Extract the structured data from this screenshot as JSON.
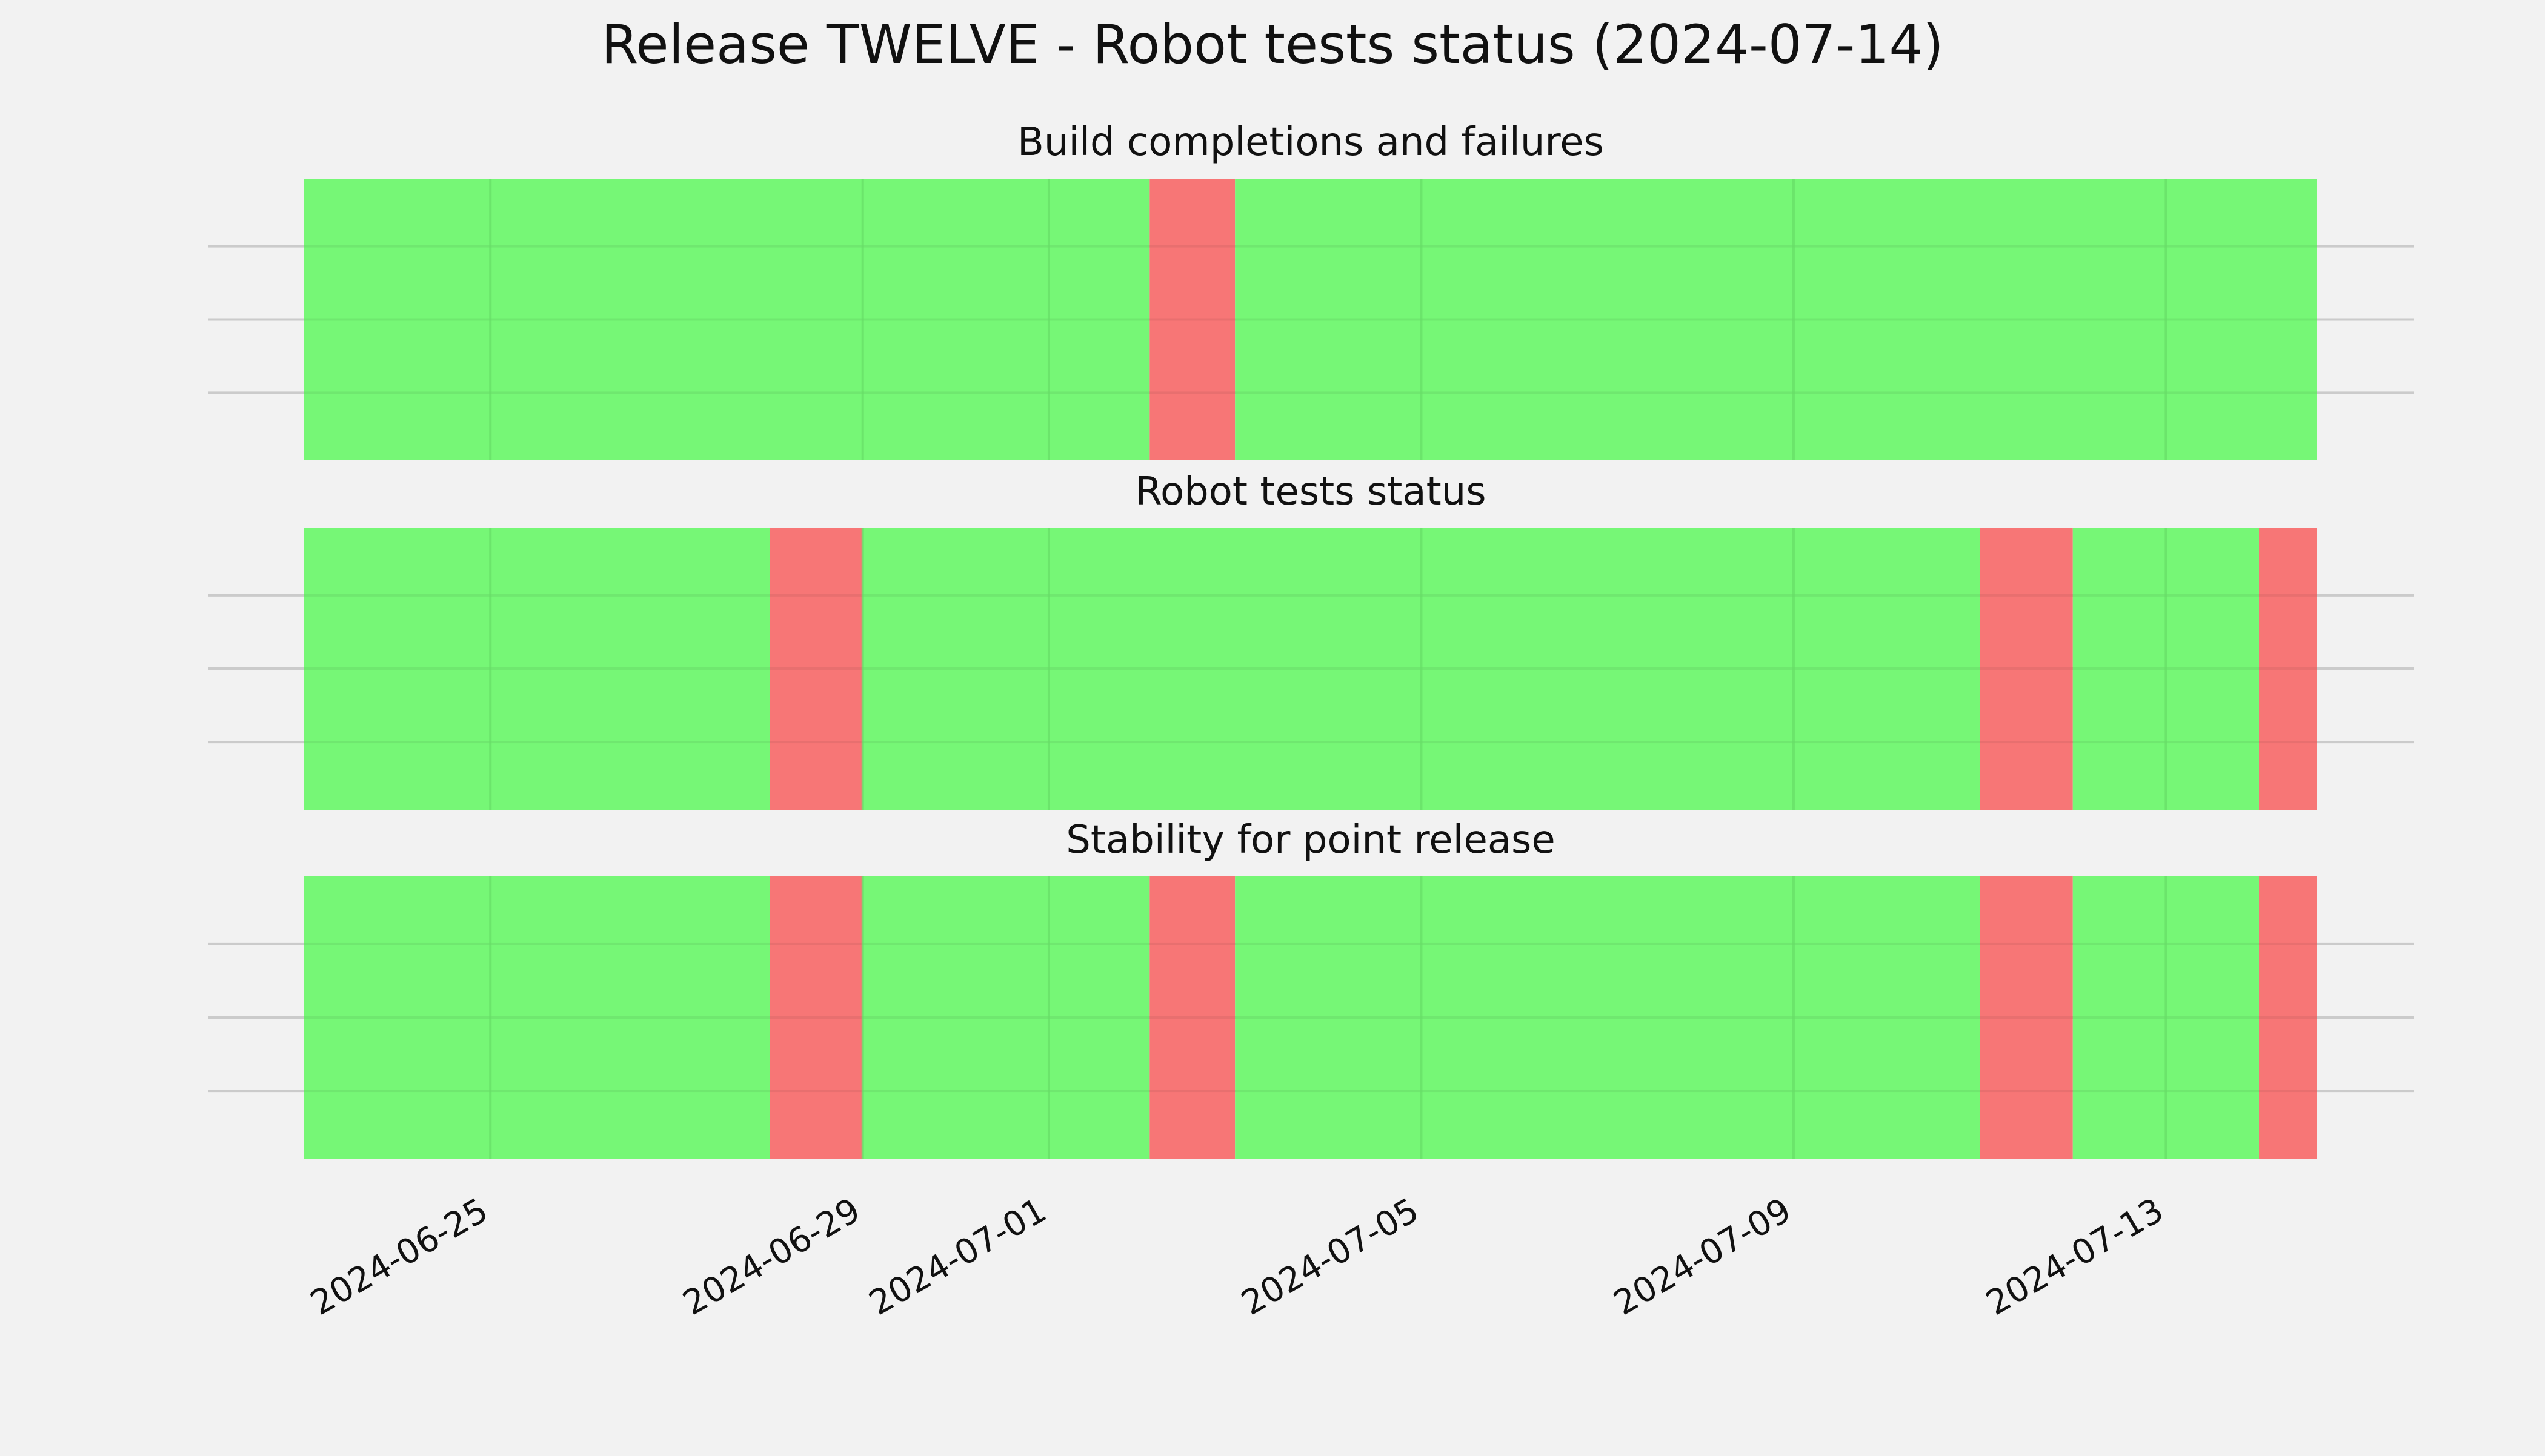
{
  "chart_data": {
    "type": "status-timeline",
    "title": "Release TWELVE - Robot tests status (2024-07-14)",
    "x_range": [
      "2024-06-23",
      "2024-07-14T15:00"
    ],
    "x_ticks": [
      "2024-06-25",
      "2024-06-29",
      "2024-07-01",
      "2024-07-05",
      "2024-07-09",
      "2024-07-13"
    ],
    "colors": {
      "pass": "#76f776",
      "fail": "#f77676",
      "background": "#f2f2f2",
      "grid": "#cbcbcb",
      "vgrid": "#66dd66"
    },
    "panels": [
      {
        "title": "Build completions and failures",
        "segments": [
          {
            "start": "2024-06-23",
            "end": "2024-07-02T02:00",
            "status": "pass"
          },
          {
            "start": "2024-07-02T02:00",
            "end": "2024-07-03",
            "status": "fail"
          },
          {
            "start": "2024-07-03",
            "end": "2024-07-14T15:00",
            "status": "pass"
          }
        ]
      },
      {
        "title": "Robot tests status",
        "segments": [
          {
            "start": "2024-06-23",
            "end": "2024-06-28",
            "status": "pass"
          },
          {
            "start": "2024-06-28",
            "end": "2024-06-29",
            "status": "fail"
          },
          {
            "start": "2024-06-29",
            "end": "2024-07-11",
            "status": "pass"
          },
          {
            "start": "2024-07-11",
            "end": "2024-07-12",
            "status": "fail"
          },
          {
            "start": "2024-07-12",
            "end": "2024-07-14",
            "status": "pass"
          },
          {
            "start": "2024-07-14",
            "end": "2024-07-14T15:00",
            "status": "fail"
          }
        ]
      },
      {
        "title": "Stability for point release",
        "segments": [
          {
            "start": "2024-06-23",
            "end": "2024-06-28",
            "status": "pass"
          },
          {
            "start": "2024-06-28",
            "end": "2024-06-29",
            "status": "fail"
          },
          {
            "start": "2024-06-29",
            "end": "2024-07-02T02:00",
            "status": "pass"
          },
          {
            "start": "2024-07-02T02:00",
            "end": "2024-07-03",
            "status": "fail"
          },
          {
            "start": "2024-07-03",
            "end": "2024-07-11",
            "status": "pass"
          },
          {
            "start": "2024-07-11",
            "end": "2024-07-12",
            "status": "fail"
          },
          {
            "start": "2024-07-12",
            "end": "2024-07-14",
            "status": "pass"
          },
          {
            "start": "2024-07-14",
            "end": "2024-07-14T15:00",
            "status": "fail"
          }
        ]
      }
    ]
  }
}
